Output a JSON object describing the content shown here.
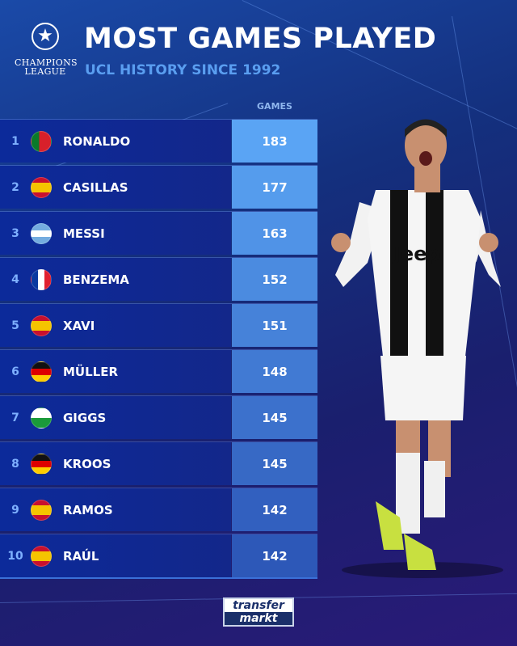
{
  "header": {
    "title": "MOST GAMES PLAYED",
    "subtitle": "UCL HISTORY SINCE 1992",
    "logo_text": [
      "CHAMPIONS",
      "LEAGUE"
    ]
  },
  "chart_data": {
    "type": "table",
    "title": "MOST GAMES PLAYED",
    "subtitle": "UCL HISTORY SINCE 1992",
    "columns": [
      "",
      "",
      "",
      "GAMES"
    ],
    "rows": [
      {
        "rank": "1",
        "flag": "portugal",
        "name": "RONALDO",
        "games": 183
      },
      {
        "rank": "2",
        "flag": "spain",
        "name": "CASILLAS",
        "games": 177
      },
      {
        "rank": "3",
        "flag": "argentina",
        "name": "MESSI",
        "games": 163
      },
      {
        "rank": "4",
        "flag": "france",
        "name": "BENZEMA",
        "games": 152
      },
      {
        "rank": "5",
        "flag": "spain",
        "name": "XAVI",
        "games": 151
      },
      {
        "rank": "6",
        "flag": "germany",
        "name": "MÜLLER",
        "games": 148
      },
      {
        "rank": "7",
        "flag": "wales",
        "name": "GIGGS",
        "games": 145
      },
      {
        "rank": "8",
        "flag": "germany",
        "name": "KROOS",
        "games": 145
      },
      {
        "rank": "9",
        "flag": "spain",
        "name": "RAMOS",
        "games": 142
      },
      {
        "rank": "10",
        "flag": "spain",
        "name": "RAÚL",
        "games": 142
      }
    ]
  },
  "footer": {
    "brand": [
      "transfer",
      "markt"
    ]
  },
  "colors": {
    "games_top": "#5aa4f4",
    "games_bottom": "#2d58b8",
    "name_bg": "#0c2a9a",
    "rank": "#7eb0ff",
    "subtitle": "#5a9ef0"
  }
}
